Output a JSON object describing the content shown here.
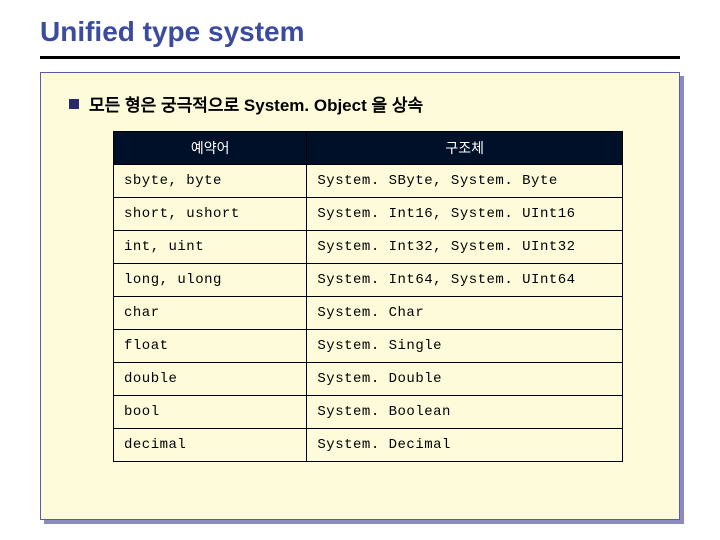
{
  "title": "Unified type system",
  "bullet_text": "모든 형은 궁극적으로 System. Object 을 상속",
  "table": {
    "headers": [
      "예약어",
      "구조체"
    ],
    "rows": [
      [
        "sbyte, byte",
        "System. SByte, System. Byte"
      ],
      [
        "short, ushort",
        "System. Int16, System. UInt16"
      ],
      [
        "int, uint",
        "System. Int32, System. UInt32"
      ],
      [
        "long, ulong",
        "System. Int64, System. UInt64"
      ],
      [
        "char",
        "System. Char"
      ],
      [
        "float",
        "System. Single"
      ],
      [
        "double",
        "System. Double"
      ],
      [
        "bool",
        "System. Boolean"
      ],
      [
        "decimal",
        "System. Decimal"
      ]
    ]
  },
  "colors": {
    "title_color": "#3b4ca0",
    "underline_color": "#000000",
    "box_bg": "#fdfbd9",
    "box_border": "#5a5aa5",
    "box_shadow": "#8a8ac0",
    "header_bg": "#001028",
    "header_fg": "#ffffff",
    "cell_border": "#000000",
    "bullet_color": "#2a2a6a"
  }
}
